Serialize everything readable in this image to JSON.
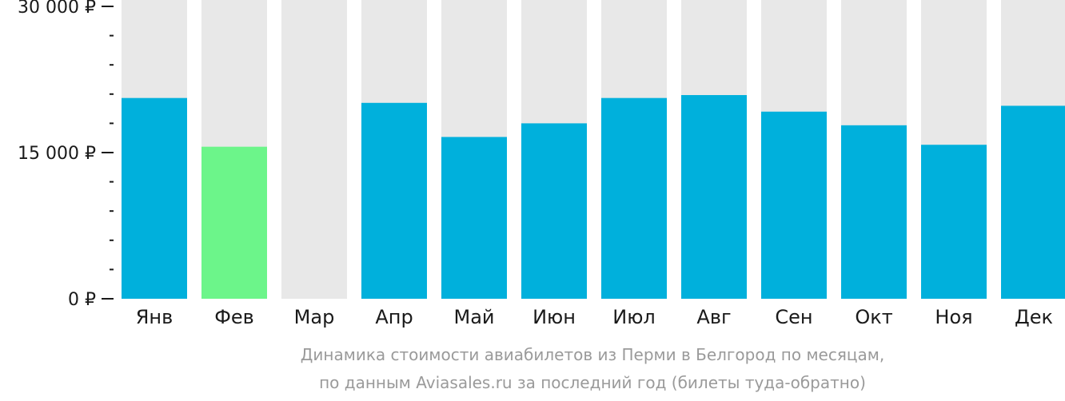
{
  "chart_data": {
    "type": "bar",
    "categories": [
      "Янв",
      "Фев",
      "Мар",
      "Апр",
      "Май",
      "Июн",
      "Июл",
      "Авг",
      "Сен",
      "Окт",
      "Ноя",
      "Дек"
    ],
    "values": [
      20600,
      15600,
      null,
      20100,
      16600,
      18000,
      20600,
      20900,
      19200,
      17800,
      15800,
      19800
    ],
    "ylim": [
      0,
      30000
    ],
    "yticks": [
      0,
      15000,
      30000
    ],
    "ytick_labels": [
      "0 ₽",
      "15 000 ₽",
      "30 000 ₽"
    ],
    "minor_tick_step": 3000,
    "highlight_index": 1,
    "colors": {
      "bar": "#00b0dc",
      "highlight": "#6cf58a",
      "background_column": "#e8e8e8",
      "axis": "#1a1a1a",
      "caption": "#9a9a9a"
    },
    "caption": [
      "Динамика стоимости авиабилетов из Перми в Белгород по месяцам,",
      "по данным Aviasales.ru за последний год (билеты туда-обратно)"
    ]
  }
}
